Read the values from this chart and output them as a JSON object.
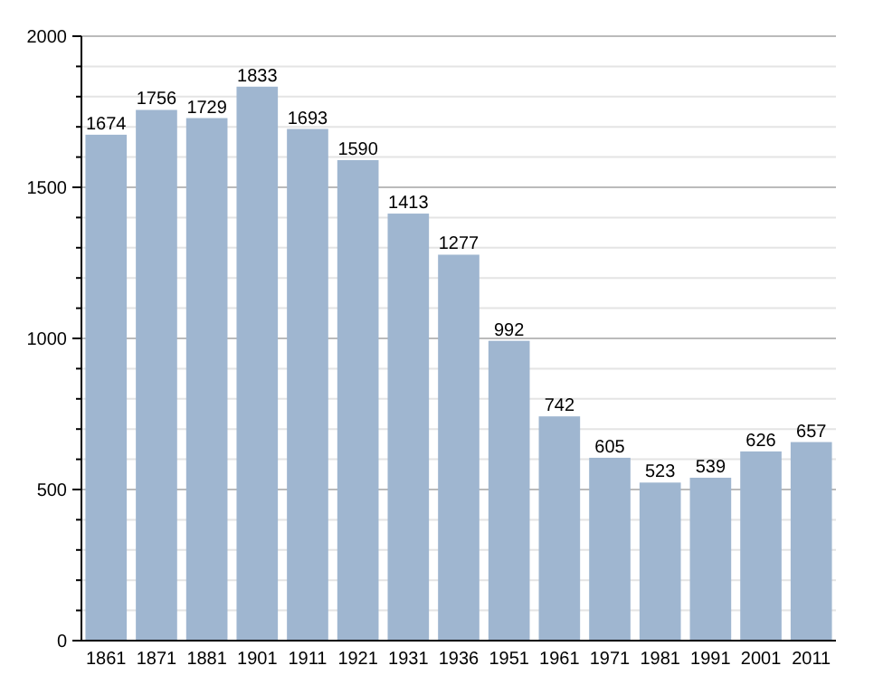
{
  "chart_data": {
    "type": "bar",
    "categories": [
      "1861",
      "1871",
      "1881",
      "1901",
      "1911",
      "1921",
      "1931",
      "1936",
      "1951",
      "1961",
      "1971",
      "1981",
      "1991",
      "2001",
      "2011"
    ],
    "values": [
      1674,
      1756,
      1729,
      1833,
      1693,
      1590,
      1413,
      1277,
      992,
      742,
      605,
      523,
      539,
      626,
      657
    ],
    "color": "#9fb6d0",
    "ylim": [
      0,
      2000
    ],
    "yticks": [
      0,
      {
        "value": 100,
        "label": null
      },
      {
        "value": 200,
        "label": null
      },
      {
        "value": 300,
        "label": null
      },
      {
        "value": 400,
        "label": null
      },
      500,
      {
        "value": 600,
        "label": null
      },
      {
        "value": 700,
        "label": null
      },
      {
        "value": 800,
        "label": null
      },
      {
        "value": 900,
        "label": null
      },
      1000,
      {
        "value": 1100,
        "label": null
      },
      {
        "value": 1200,
        "label": null
      },
      {
        "value": 1300,
        "label": null
      },
      {
        "value": 1400,
        "label": null
      },
      1500,
      {
        "value": 1600,
        "label": null
      },
      {
        "value": 1700,
        "label": null
      },
      {
        "value": 1800,
        "label": null
      },
      {
        "value": 1900,
        "label": null
      },
      2000
    ],
    "grid": true,
    "data_labels": true
  }
}
